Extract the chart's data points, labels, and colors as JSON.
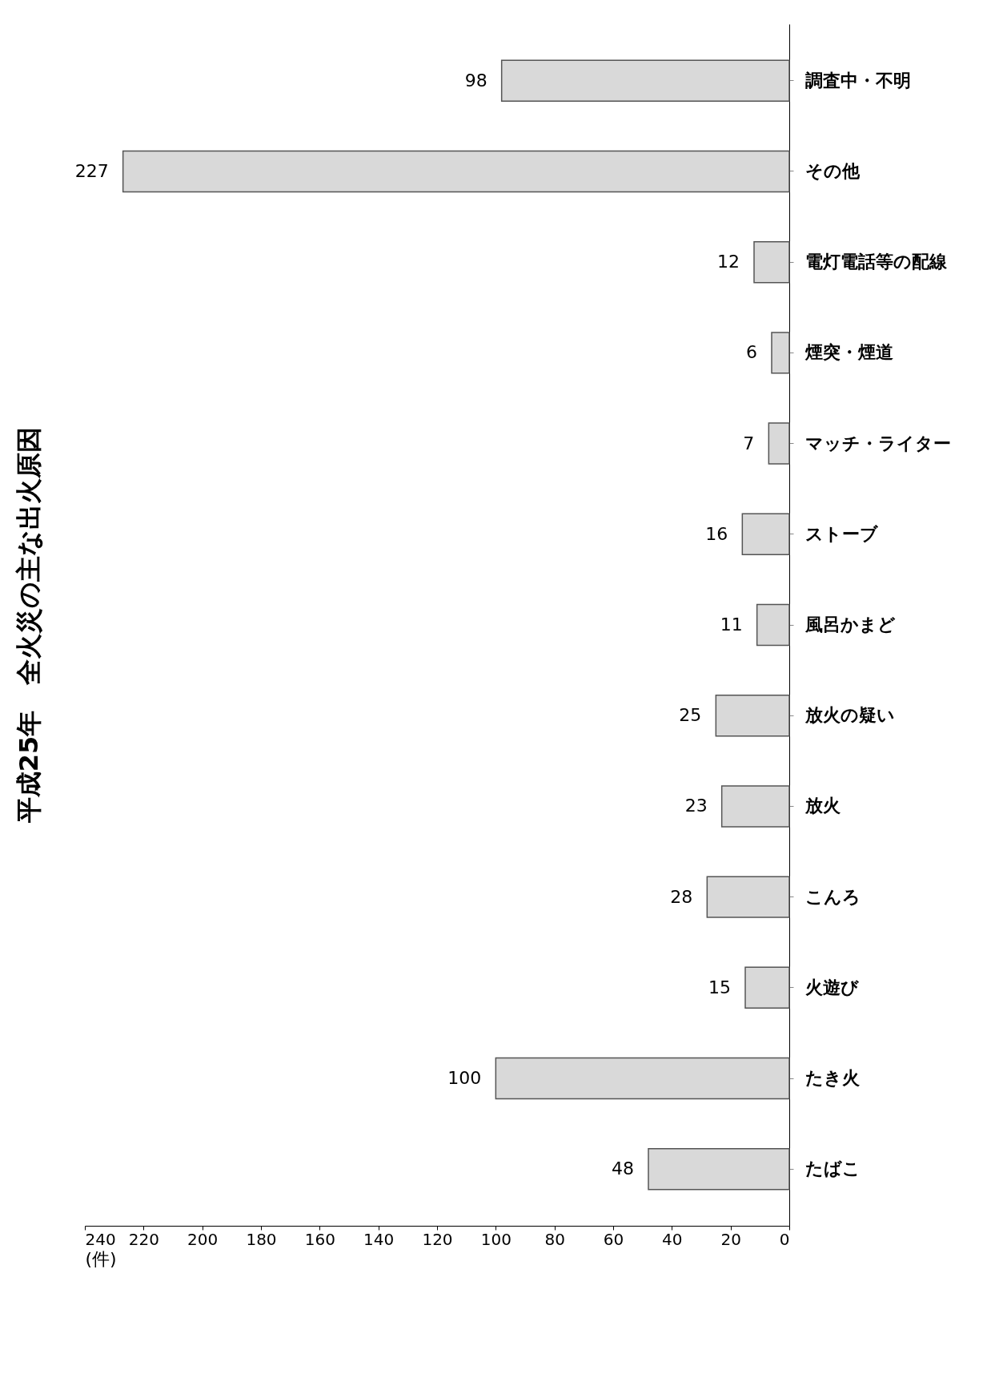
{
  "chart_data": {
    "type": "bar",
    "orientation": "horizontal",
    "title": "平成25年　全火災の主な出火原因",
    "xlabel": "(件)",
    "categories": [
      "調査中・不明",
      "その他",
      "電灯電話等の配線",
      "煙突・煙道",
      "マッチ・ライター",
      "ストーブ",
      "風呂かまど",
      "放火の疑い",
      "放火",
      "こんろ",
      "火遊び",
      "たき火",
      "たばこ"
    ],
    "values": [
      98,
      227,
      12,
      6,
      7,
      16,
      11,
      25,
      23,
      28,
      15,
      100,
      48
    ],
    "color": "#d9d9d9",
    "xlim": [
      240,
      0
    ],
    "xticks": [
      0,
      20,
      40,
      60,
      80,
      100,
      120,
      140,
      160,
      180,
      200,
      220,
      240
    ],
    "data_labels": true
  }
}
